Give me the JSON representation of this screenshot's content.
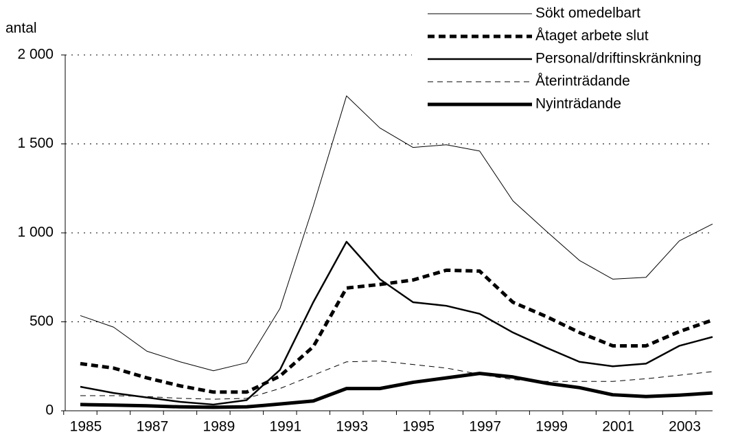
{
  "chart_data": {
    "type": "line",
    "y_label": "antal",
    "categories": [
      "1985",
      null,
      "1987",
      null,
      "1989",
      null,
      "1991",
      null,
      "1993",
      null,
      "1995",
      null,
      "1997",
      null,
      "1999",
      null,
      "2001",
      null,
      "2003",
      null
    ],
    "series": [
      {
        "name": "Sökt omedelbart",
        "color": "#000000",
        "width": 1,
        "dash": "none",
        "values": [
          535,
          470,
          335,
          275,
          225,
          270,
          575,
          1150,
          1770,
          1590,
          1480,
          1495,
          1460,
          1180,
          1010,
          845,
          740,
          750,
          955,
          1050
        ]
      },
      {
        "name": "Åtaget arbete slut",
        "color": "#000000",
        "width": 5,
        "dash": "10 6",
        "values": [
          265,
          240,
          185,
          140,
          105,
          105,
          195,
          360,
          690,
          710,
          735,
          790,
          785,
          610,
          530,
          440,
          365,
          365,
          445,
          510
        ]
      },
      {
        "name": "Personal/driftinskränkning",
        "color": "#000000",
        "width": 2.5,
        "dash": "none",
        "values": [
          135,
          100,
          75,
          50,
          35,
          60,
          230,
          610,
          950,
          740,
          610,
          590,
          545,
          440,
          355,
          275,
          250,
          265,
          365,
          415
        ]
      },
      {
        "name": "Återinträdande",
        "color": "#000000",
        "width": 1,
        "dash": "8 6",
        "values": [
          85,
          85,
          80,
          70,
          65,
          70,
          125,
          200,
          275,
          280,
          260,
          240,
          205,
          175,
          165,
          165,
          165,
          180,
          200,
          220
        ]
      },
      {
        "name": "Nyinträdande",
        "color": "#000000",
        "width": 5,
        "dash": "none",
        "values": [
          35,
          32,
          28,
          22,
          20,
          22,
          38,
          55,
          125,
          125,
          160,
          185,
          210,
          190,
          155,
          130,
          90,
          80,
          88,
          100
        ]
      }
    ],
    "ylim": [
      0,
      2000
    ],
    "yticks": [
      0,
      500,
      {
        "value": 1000,
        "label": "1 000"
      },
      {
        "value": 1500,
        "label": "1 500"
      },
      {
        "value": 2000,
        "label": "2 000"
      }
    ],
    "grid": true
  }
}
